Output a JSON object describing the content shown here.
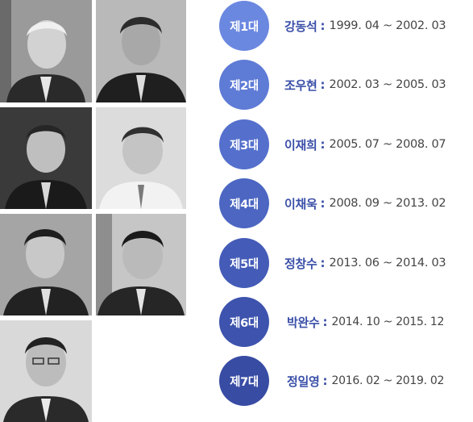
{
  "colors": {
    "badge_gradient": [
      "#6b88e0",
      "#5e7bd6",
      "#5570cc",
      "#4c66c2",
      "#445cb7",
      "#3d53ad",
      "#384ca4"
    ],
    "name_text": "#3a4fa8",
    "term_text": "#444444"
  },
  "portraits": [
    {
      "icon": "portrait-photo"
    },
    {
      "icon": "portrait-photo"
    },
    {
      "icon": "portrait-photo"
    },
    {
      "icon": "portrait-photo"
    },
    {
      "icon": "portrait-photo"
    },
    {
      "icon": "portrait-photo"
    },
    {
      "icon": "portrait-photo"
    }
  ],
  "terms": [
    {
      "badge": "제1대",
      "name": "강동석",
      "sep": ":",
      "period": "1999. 04 ~ 2002. 03"
    },
    {
      "badge": "제2대",
      "name": "조우현",
      "sep": ":",
      "period": "2002. 03 ~ 2005. 03"
    },
    {
      "badge": "제3대",
      "name": "이재희",
      "sep": ":",
      "period": "2005. 07 ~ 2008. 07"
    },
    {
      "badge": "제4대",
      "name": "이채욱",
      "sep": ":",
      "period": "2008. 09 ~ 2013. 02"
    },
    {
      "badge": "제5대",
      "name": "정창수",
      "sep": ":",
      "period": "2013. 06 ~ 2014. 03"
    },
    {
      "badge": "제6대",
      "name": "박완수",
      "sep": ":",
      "period": "2014. 10 ~ 2015. 12"
    },
    {
      "badge": "제7대",
      "name": "정일영",
      "sep": ":",
      "period": "2016. 02 ~ 2019. 02"
    }
  ]
}
